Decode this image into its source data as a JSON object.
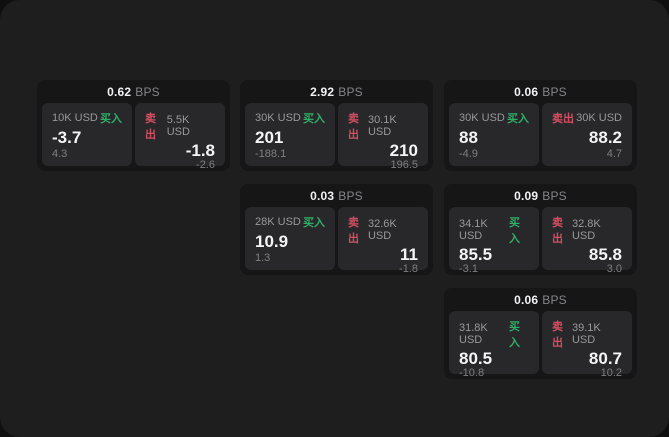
{
  "labels": {
    "bps_unit": "BPS",
    "buy": "买入",
    "sell": "卖出"
  },
  "colors": {
    "outer_bg": "#0f0f0f",
    "window_bg": "#1e1e1f",
    "card_bg": "#161617",
    "panel_bg": "#28282a",
    "buy_green": "#2fae68",
    "sell_red": "#d24f63",
    "text_primary": "#f4f4f6",
    "text_muted": "#98989d"
  },
  "cards": [
    {
      "bps": "0.62",
      "buy": {
        "amount": "10K USD",
        "value": "-3.7",
        "delta": "4.3"
      },
      "sell": {
        "amount": "5.5K USD",
        "value": "-1.8",
        "delta": "-2.6"
      }
    },
    {
      "bps": "2.92",
      "buy": {
        "amount": "30K USD",
        "value": "201",
        "delta": "-188.1"
      },
      "sell": {
        "amount": "30.1K USD",
        "value": "210",
        "delta": "196.5"
      }
    },
    {
      "bps": "0.06",
      "buy": {
        "amount": "30K USD",
        "value": "88",
        "delta": "-4.9"
      },
      "sell": {
        "amount": "30K USD",
        "value": "88.2",
        "delta": "4.7"
      }
    },
    {
      "bps": "0.03",
      "buy": {
        "amount": "28K USD",
        "value": "10.9",
        "delta": "1.3"
      },
      "sell": {
        "amount": "32.6K USD",
        "value": "11",
        "delta": "-1.8"
      }
    },
    {
      "bps": "0.09",
      "buy": {
        "amount": "34.1K USD",
        "value": "85.5",
        "delta": "-3.1"
      },
      "sell": {
        "amount": "32.8K USD",
        "value": "85.8",
        "delta": "3.0"
      }
    },
    {
      "bps": "0.06",
      "buy": {
        "amount": "31.8K USD",
        "value": "80.5",
        "delta": "-10.8"
      },
      "sell": {
        "amount": "39.1K USD",
        "value": "80.7",
        "delta": "10.2"
      }
    }
  ]
}
